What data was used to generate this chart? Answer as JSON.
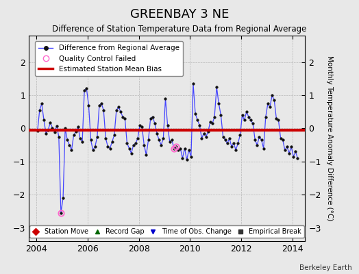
{
  "title": "GREENBAY 3 NE",
  "subtitle": "Difference of Station Temperature Data from Regional Average",
  "ylabel": "Monthly Temperature Anomaly Difference (°C)",
  "credit": "Berkeley Earth",
  "xlim": [
    2003.7,
    2014.5
  ],
  "ylim": [
    -3.4,
    2.8
  ],
  "yticks": [
    -3,
    -2,
    -1,
    0,
    1,
    2
  ],
  "xticks": [
    2004,
    2006,
    2008,
    2010,
    2012,
    2014
  ],
  "bias_line": -0.05,
  "bias_color": "#cc0000",
  "line_color": "#4444ff",
  "marker_color": "#111111",
  "qc_fail_color": "#ff66cc",
  "background_color": "#e8e8e8",
  "time_series": [
    [
      2004.042,
      -0.08
    ],
    [
      2004.125,
      0.55
    ],
    [
      2004.208,
      0.75
    ],
    [
      2004.292,
      0.25
    ],
    [
      2004.375,
      -0.15
    ],
    [
      2004.458,
      -0.05
    ],
    [
      2004.542,
      0.18
    ],
    [
      2004.625,
      0.02
    ],
    [
      2004.708,
      -0.12
    ],
    [
      2004.792,
      0.08
    ],
    [
      2004.875,
      -0.25
    ],
    [
      2004.958,
      -2.55
    ],
    [
      2005.042,
      -2.1
    ],
    [
      2005.125,
      0.0
    ],
    [
      2005.208,
      -0.35
    ],
    [
      2005.292,
      -0.5
    ],
    [
      2005.375,
      -0.65
    ],
    [
      2005.458,
      -0.2
    ],
    [
      2005.542,
      -0.1
    ],
    [
      2005.625,
      0.05
    ],
    [
      2005.708,
      -0.3
    ],
    [
      2005.792,
      -0.4
    ],
    [
      2005.875,
      1.15
    ],
    [
      2005.958,
      1.2
    ],
    [
      2006.042,
      0.7
    ],
    [
      2006.125,
      -0.35
    ],
    [
      2006.208,
      -0.65
    ],
    [
      2006.292,
      -0.55
    ],
    [
      2006.375,
      -0.25
    ],
    [
      2006.458,
      0.7
    ],
    [
      2006.542,
      0.75
    ],
    [
      2006.625,
      0.55
    ],
    [
      2006.708,
      -0.3
    ],
    [
      2006.792,
      -0.55
    ],
    [
      2006.875,
      -0.6
    ],
    [
      2006.958,
      -0.4
    ],
    [
      2007.042,
      -0.2
    ],
    [
      2007.125,
      0.55
    ],
    [
      2007.208,
      0.65
    ],
    [
      2007.292,
      0.5
    ],
    [
      2007.375,
      0.35
    ],
    [
      2007.458,
      0.3
    ],
    [
      2007.542,
      -0.45
    ],
    [
      2007.625,
      -0.6
    ],
    [
      2007.708,
      -0.75
    ],
    [
      2007.792,
      -0.5
    ],
    [
      2007.875,
      -0.45
    ],
    [
      2007.958,
      -0.3
    ],
    [
      2008.042,
      0.1
    ],
    [
      2008.125,
      0.05
    ],
    [
      2008.208,
      -0.5
    ],
    [
      2008.292,
      -0.8
    ],
    [
      2008.375,
      -0.35
    ],
    [
      2008.458,
      0.3
    ],
    [
      2008.542,
      0.35
    ],
    [
      2008.625,
      0.15
    ],
    [
      2008.708,
      -0.15
    ],
    [
      2008.792,
      -0.35
    ],
    [
      2008.875,
      -0.5
    ],
    [
      2008.958,
      -0.3
    ],
    [
      2009.042,
      0.9
    ],
    [
      2009.125,
      0.1
    ],
    [
      2009.208,
      -0.4
    ],
    [
      2009.292,
      -0.35
    ],
    [
      2009.375,
      -0.6
    ],
    [
      2009.458,
      -0.55
    ],
    [
      2009.542,
      -0.65
    ],
    [
      2009.625,
      -0.6
    ],
    [
      2009.708,
      -0.9
    ],
    [
      2009.792,
      -0.6
    ],
    [
      2009.875,
      -0.95
    ],
    [
      2009.958,
      -0.65
    ],
    [
      2010.042,
      -0.85
    ],
    [
      2010.125,
      1.35
    ],
    [
      2010.208,
      0.45
    ],
    [
      2010.292,
      0.25
    ],
    [
      2010.375,
      0.1
    ],
    [
      2010.458,
      -0.3
    ],
    [
      2010.542,
      -0.15
    ],
    [
      2010.625,
      -0.25
    ],
    [
      2010.708,
      -0.1
    ],
    [
      2010.792,
      0.2
    ],
    [
      2010.875,
      0.15
    ],
    [
      2010.958,
      0.35
    ],
    [
      2011.042,
      1.25
    ],
    [
      2011.125,
      0.75
    ],
    [
      2011.208,
      0.4
    ],
    [
      2011.292,
      -0.25
    ],
    [
      2011.375,
      -0.35
    ],
    [
      2011.458,
      -0.45
    ],
    [
      2011.542,
      -0.3
    ],
    [
      2011.625,
      -0.55
    ],
    [
      2011.708,
      -0.45
    ],
    [
      2011.792,
      -0.65
    ],
    [
      2011.875,
      -0.45
    ],
    [
      2011.958,
      -0.2
    ],
    [
      2012.042,
      0.4
    ],
    [
      2012.125,
      0.25
    ],
    [
      2012.208,
      0.5
    ],
    [
      2012.292,
      0.35
    ],
    [
      2012.375,
      0.25
    ],
    [
      2012.458,
      0.15
    ],
    [
      2012.542,
      -0.35
    ],
    [
      2012.625,
      -0.5
    ],
    [
      2012.708,
      -0.25
    ],
    [
      2012.792,
      -0.35
    ],
    [
      2012.875,
      -0.6
    ],
    [
      2012.958,
      0.35
    ],
    [
      2013.042,
      0.75
    ],
    [
      2013.125,
      0.65
    ],
    [
      2013.208,
      1.0
    ],
    [
      2013.292,
      0.85
    ],
    [
      2013.375,
      0.3
    ],
    [
      2013.458,
      0.25
    ],
    [
      2013.542,
      -0.3
    ],
    [
      2013.625,
      -0.35
    ],
    [
      2013.708,
      -0.65
    ],
    [
      2013.792,
      -0.55
    ],
    [
      2013.875,
      -0.75
    ],
    [
      2013.958,
      -0.55
    ],
    [
      2014.042,
      -0.85
    ],
    [
      2014.125,
      -0.7
    ],
    [
      2014.208,
      -0.9
    ]
  ],
  "qc_fail_points": [
    [
      2004.958,
      -2.55
    ],
    [
      2009.375,
      -0.6
    ],
    [
      2009.458,
      -0.55
    ]
  ],
  "time_obs_changes": [],
  "station_moves": [],
  "record_gaps": [],
  "empirical_breaks": []
}
